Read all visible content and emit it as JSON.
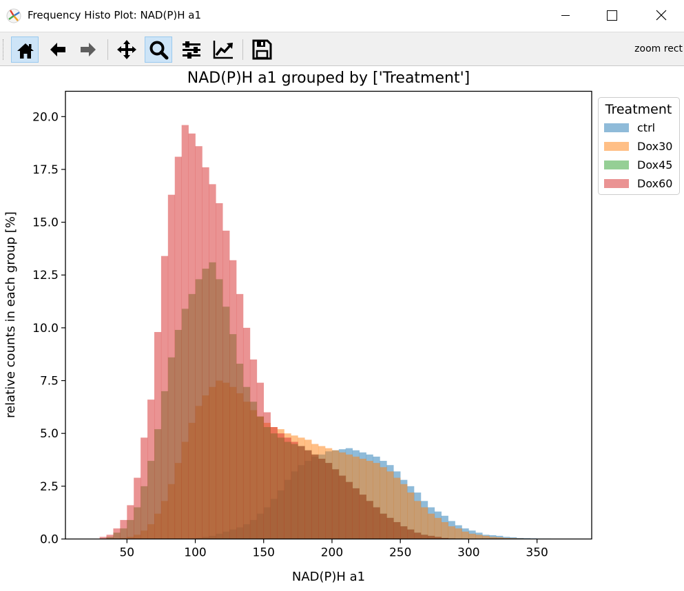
{
  "window": {
    "title": "Frequency Histo Plot: NAD(P)H a1"
  },
  "toolbar": {
    "buttons": [
      {
        "name": "home",
        "icon": "home-icon",
        "active": true
      },
      {
        "name": "back",
        "icon": "arrow-left-icon",
        "active": false
      },
      {
        "name": "forward",
        "icon": "arrow-right-icon",
        "active": false
      },
      {
        "name": "pan",
        "icon": "move-icon",
        "active": false
      },
      {
        "name": "zoom",
        "icon": "magnifier-icon",
        "active": true
      },
      {
        "name": "subplots",
        "icon": "sliders-icon",
        "active": false
      },
      {
        "name": "axes",
        "icon": "line-chart-icon",
        "active": false
      },
      {
        "name": "save",
        "icon": "floppy-disk-icon",
        "active": false
      }
    ],
    "mode_message": "zoom rect"
  },
  "chart_data": {
    "type": "histogram",
    "title": "NAD(P)H a1 grouped by ['Treatment']",
    "xlabel": "NAD(P)H a1",
    "ylabel": "relative counts in each group [%]",
    "xlim": [
      5,
      390
    ],
    "ylim": [
      0,
      21.2
    ],
    "xticks": [
      "50",
      "100",
      "150",
      "200",
      "250",
      "300",
      "350"
    ],
    "yticks": [
      "0.0",
      "2.5",
      "5.0",
      "7.5",
      "10.0",
      "12.5",
      "15.0",
      "17.5",
      "20.0"
    ],
    "bin_start": 25,
    "bin_width": 5,
    "grid": false,
    "legend": {
      "title": "Treatment",
      "position": "outside-right"
    },
    "series": [
      {
        "name": "ctrl",
        "color": "#1f77b4",
        "values": [
          0,
          0,
          0,
          0,
          0,
          0,
          0,
          0,
          0,
          0,
          0,
          0,
          0,
          0,
          0,
          0.05,
          0.1,
          0.15,
          0.25,
          0.35,
          0.45,
          0.55,
          0.7,
          0.9,
          1.2,
          1.5,
          1.9,
          2.3,
          2.8,
          3.2,
          3.5,
          3.7,
          3.9,
          4.0,
          4.15,
          4.2,
          4.25,
          4.3,
          4.2,
          4.1,
          4.0,
          3.9,
          3.7,
          3.5,
          3.2,
          2.8,
          2.5,
          2.2,
          1.8,
          1.5,
          1.3,
          1.1,
          0.85,
          0.65,
          0.5,
          0.4,
          0.3,
          0.2,
          0.18,
          0.15,
          0.1,
          0.08,
          0.05,
          0.04,
          0.03,
          0.02,
          0.02,
          0.01,
          0.01,
          0.01
        ]
      },
      {
        "name": "Dox30",
        "color": "#ff7f0e",
        "values": [
          0,
          0,
          0,
          0,
          0.05,
          0.1,
          0.2,
          0.4,
          0.7,
          1.2,
          1.8,
          2.6,
          3.6,
          4.6,
          5.5,
          6.3,
          6.8,
          7.2,
          7.5,
          7.4,
          7.2,
          6.9,
          6.5,
          6.1,
          5.8,
          5.5,
          5.3,
          5.2,
          5.0,
          4.9,
          4.8,
          4.7,
          4.5,
          4.4,
          4.3,
          4.2,
          4.1,
          4.0,
          3.9,
          3.8,
          3.7,
          3.6,
          3.4,
          3.2,
          2.9,
          2.6,
          2.2,
          1.8,
          1.5,
          1.2,
          1.0,
          0.8,
          0.6,
          0.5,
          0.35,
          0.25,
          0.2,
          0.15,
          0.1,
          0.08,
          0.05,
          0.04,
          0.03,
          0.02,
          0.01,
          0,
          0,
          0,
          0,
          0
        ]
      },
      {
        "name": "Dox45",
        "color": "#2ca02c",
        "values": [
          0,
          0,
          0.1,
          0.3,
          0.5,
          0.9,
          1.5,
          2.5,
          3.7,
          5.2,
          7.0,
          8.6,
          9.9,
          10.9,
          11.6,
          12.3,
          12.8,
          13.1,
          12.3,
          11.0,
          9.7,
          8.3,
          7.2,
          6.5,
          5.8,
          5.3,
          5.0,
          4.8,
          4.6,
          4.5,
          4.4,
          4.2,
          4.0,
          3.8,
          3.6,
          3.3,
          3.0,
          2.7,
          2.4,
          2.1,
          1.8,
          1.5,
          1.2,
          1.0,
          0.8,
          0.6,
          0.45,
          0.3,
          0.2,
          0.15,
          0.1,
          0.05,
          0.03,
          0.02,
          0.01,
          0,
          0,
          0,
          0,
          0,
          0,
          0,
          0,
          0,
          0,
          0,
          0,
          0,
          0,
          0
        ]
      },
      {
        "name": "Dox60",
        "color": "#d62728",
        "values": [
          0,
          0.1,
          0.2,
          0.5,
          0.9,
          1.6,
          2.9,
          4.8,
          6.6,
          9.8,
          13.4,
          16.3,
          18.1,
          19.6,
          19.2,
          18.6,
          17.6,
          16.8,
          15.9,
          14.6,
          13.2,
          11.6,
          10.0,
          8.5,
          7.4,
          6.0,
          5.3,
          5.0,
          4.8,
          4.6,
          4.4,
          4.2,
          4.0,
          3.8,
          3.6,
          3.3,
          3.0,
          2.7,
          2.4,
          2.1,
          1.8,
          1.5,
          1.2,
          1.0,
          0.8,
          0.6,
          0.45,
          0.3,
          0.2,
          0.15,
          0.1,
          0.05,
          0.03,
          0.02,
          0.01,
          0,
          0,
          0,
          0,
          0,
          0,
          0,
          0,
          0,
          0,
          0,
          0,
          0,
          0,
          0
        ]
      }
    ]
  }
}
